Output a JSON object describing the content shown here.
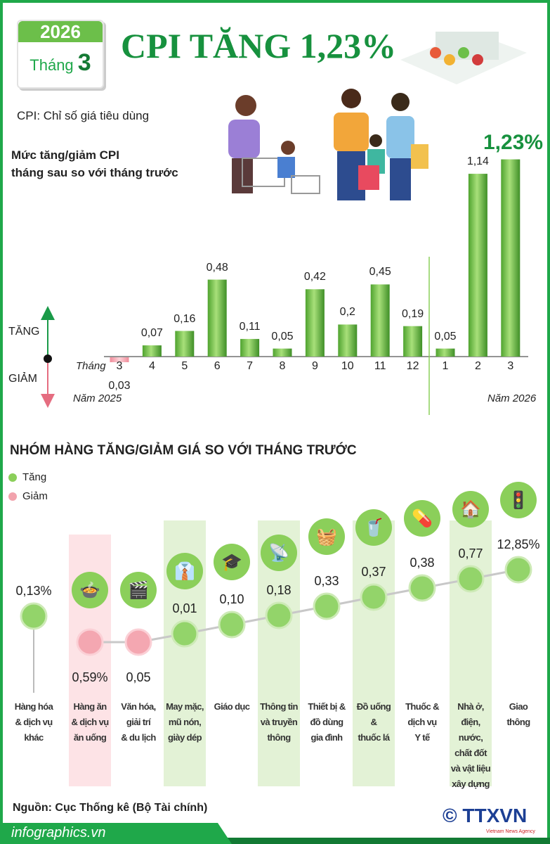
{
  "header": {
    "year": "2026",
    "month_label": "Tháng",
    "month": "3",
    "title": "CPI TĂNG 1,23%",
    "subtitle": "CPI: Chỉ số giá tiêu dùng"
  },
  "colors": {
    "increase": "#5cb83c",
    "decrease": "#f2a3ad",
    "accent": "#17913e"
  },
  "chart_data": [
    {
      "type": "bar",
      "title": "Mức tăng/giảm CPI tháng sau so với tháng trước",
      "title_lines": [
        "Mức tăng/giảm CPI",
        "tháng sau so với tháng trước"
      ],
      "axis_prefix": "Tháng",
      "up_label": "TĂNG",
      "down_label": "GIẢM",
      "year_labels": [
        "Năm 2025",
        "Năm 2026"
      ],
      "categories": [
        "3",
        "4",
        "5",
        "6",
        "7",
        "8",
        "9",
        "10",
        "11",
        "12",
        "1",
        "2",
        "3"
      ],
      "values": [
        -0.03,
        0.07,
        0.16,
        0.48,
        0.11,
        0.05,
        0.42,
        0.2,
        0.45,
        0.19,
        0.05,
        1.14,
        1.23
      ],
      "labels": [
        "0,03",
        "0,07",
        "0,16",
        "0,48",
        "0,11",
        "0,05",
        "0,42",
        "0,2",
        "0,45",
        "0,19",
        "0,05",
        "1,14",
        "1,23%"
      ]
    },
    {
      "type": "scatter",
      "title": "NHÓM HÀNG TĂNG/GIẢM GIÁ SO VỚI THÁNG TRƯỚC",
      "legend": [
        "Tăng",
        "Giảm"
      ],
      "categories": [
        "Hàng hóa & dịch vụ khác",
        "Hàng ăn & dịch vụ ăn uống",
        "Văn hóa, giải trí & du lịch",
        "May mặc, mũ nón, giày dép",
        "Giáo dục",
        "Thông tin và truyền thông",
        "Thiết bị & đồ dùng gia đình",
        "Đồ uống & thuốc lá",
        "Thuốc & dịch vụ Y tế",
        "Nhà ở, điện, nước, chất đốt và vật liệu xây dựng",
        "Giao thông"
      ],
      "category_lines": [
        [
          "Hàng hóa",
          "& dịch vụ",
          "khác"
        ],
        [
          "Hàng ăn",
          "& dịch vụ",
          "ăn uống"
        ],
        [
          "Văn hóa,",
          "giải trí",
          "& du lịch"
        ],
        [
          "May mặc,",
          "mũ nón,",
          "giày dép"
        ],
        [
          "Giáo dục"
        ],
        [
          "Thông tin",
          "và truyền",
          "thông"
        ],
        [
          "Thiết bị &",
          "đồ dùng",
          "gia đình"
        ],
        [
          "Đồ uống",
          "&",
          "thuốc lá"
        ],
        [
          "Thuốc &",
          "dịch vụ",
          "Y tế"
        ],
        [
          "Nhà ở,",
          "điện,",
          "nước,",
          "chất đốt",
          "và vật liệu",
          "xây dựng"
        ],
        [
          "Giao",
          "thông"
        ]
      ],
      "values": [
        0.13,
        -0.59,
        -0.05,
        0.01,
        0.1,
        0.18,
        0.33,
        0.37,
        0.38,
        0.77,
        12.85
      ],
      "labels": [
        "0,13%",
        "0,59%",
        "0,05",
        "0,01",
        "0,10",
        "0,18",
        "0,33",
        "0,37",
        "0,38",
        "0,77",
        "12,85%"
      ],
      "icons": [
        "",
        "food-icon",
        "film-icon",
        "clothing-icon",
        "graduation-cap-icon",
        "antenna-icon",
        "washing-machine-icon",
        "drinks-icon",
        "pill-icon",
        "house-utility-icon",
        "traffic-light-icon"
      ]
    }
  ],
  "footer": {
    "source": "Nguồn: Cục Thống kê (Bộ Tài chính)",
    "site": "infographics.vn",
    "logo": "© TTXVN",
    "logo_sub": "Vietnam News Agency"
  }
}
